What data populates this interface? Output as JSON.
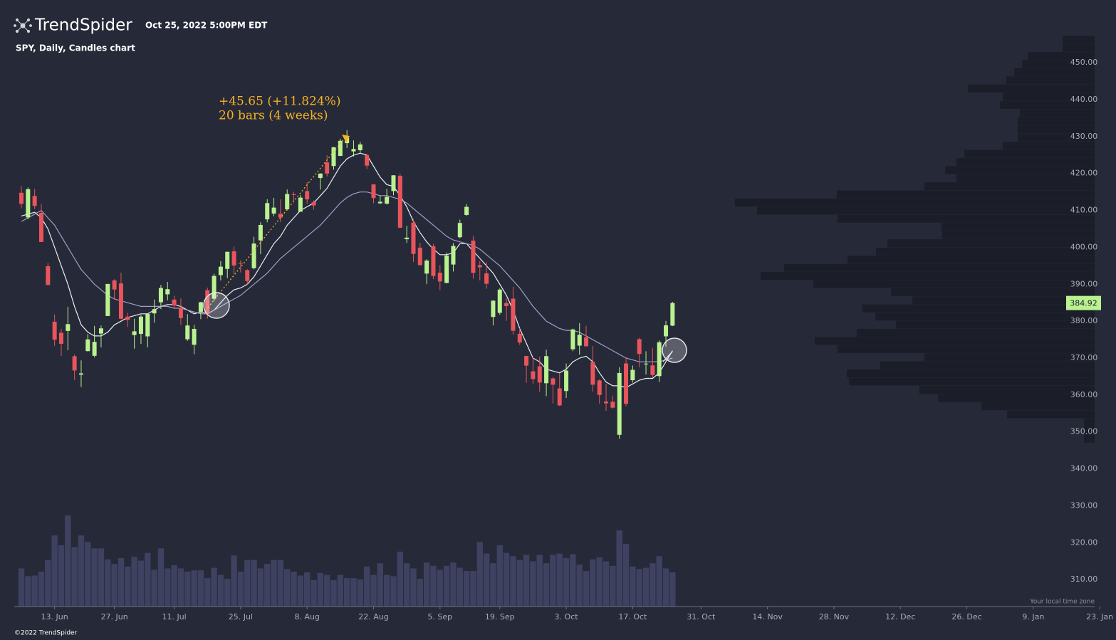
{
  "header": {
    "logo": "TrendSpider",
    "timestamp": "Oct 25, 2022 5:00PM EDT",
    "chart_label": "SPY, Daily, Candles chart"
  },
  "chart_data": {
    "type": "candlestick",
    "dates": [
      "6. Jun",
      "7. Jun",
      "8. Jun",
      "9. Jun",
      "10. Jun",
      "13. Jun",
      "14. Jun",
      "15. Jun",
      "16. Jun",
      "17. Jun",
      "21. Jun",
      "22. Jun",
      "23. Jun",
      "24. Jun",
      "27. Jun",
      "28. Jun",
      "29. Jun",
      "30. Jun",
      "1. Jul",
      "5. Jul",
      "6. Jul",
      "7. Jul",
      "8. Jul",
      "11. Jul",
      "12. Jul",
      "13. Jul",
      "14. Jul",
      "15. Jul",
      "18. Jul",
      "19. Jul",
      "20. Jul",
      "21. Jul",
      "22. Jul",
      "25. Jul",
      "26. Jul",
      "27. Jul",
      "28. Jul",
      "29. Jul",
      "1. Aug",
      "2. Aug",
      "3. Aug",
      "4. Aug",
      "5. Aug",
      "8. Aug",
      "9. Aug",
      "10. Aug",
      "11. Aug",
      "12. Aug",
      "15. Aug",
      "16. Aug",
      "17. Aug",
      "18. Aug",
      "19. Aug",
      "22. Aug",
      "23. Aug",
      "24. Aug",
      "25. Aug",
      "26. Aug",
      "29. Aug",
      "30. Aug",
      "31. Aug",
      "1. Sep",
      "2. Sep",
      "6. Sep",
      "7. Sep",
      "8. Sep",
      "9. Sep",
      "12. Sep",
      "13. Sep",
      "14. Sep",
      "15. Sep",
      "16. Sep",
      "19. Sep",
      "20. Sep",
      "21. Sep",
      "22. Sep",
      "23. Sep",
      "26. Sep",
      "27. Sep",
      "28. Sep",
      "29. Sep",
      "30. Sep",
      "3. Oct",
      "4. Oct",
      "5. Oct",
      "6. Oct",
      "7. Oct",
      "10. Oct",
      "11. Oct",
      "12. Oct",
      "13. Oct",
      "14. Oct",
      "17. Oct",
      "18. Oct",
      "19. Oct",
      "20. Oct",
      "21. Oct",
      "24. Oct",
      "25. Oct"
    ],
    "open": [
      414.78,
      408.1,
      413.93,
      409.34,
      394.88,
      379.85,
      376.85,
      377.36,
      370.51,
      365.51,
      371.89,
      370.62,
      376.64,
      381.4,
      391.05,
      390.23,
      381.23,
      376.24,
      376.56,
      375.88,
      382.11,
      385.12,
      387.27,
      385.85,
      383.65,
      375.1,
      373.61,
      382.55,
      388.38,
      386.08,
      392.47,
      394.16,
      398.92,
      395.75,
      393.84,
      394.36,
      401.89,
      407.58,
      409.15,
      409.12,
      410.3,
      414.37,
      409.66,
      415.25,
      412.22,
      418.78,
      422.99,
      422.03,
      424.77,
      428.22,
      425.99,
      426.3,
      424.98,
      417.05,
      411.93,
      411.84,
      415.24,
      419.39,
      402.2,
      406.69,
      399.92,
      392.89,
      400.28,
      393.13,
      390.37,
      395.34,
      402.74,
      408.78,
      401.83,
      395.16,
      392.96,
      381.15,
      382.26,
      384.9,
      386.11,
      376.58,
      370.58,
      366.41,
      367.76,
      363.19,
      364.49,
      361.8,
      361.08,
      372.4,
      373.38,
      375.62,
      368.97,
      363.96,
      358.24,
      358.17,
      349.21,
      368.55,
      364.01,
      375.13,
      368.49,
      368.03,
      365.12,
      375.89,
      378.79
    ],
    "high": [
      416.61,
      416.22,
      415.82,
      411.74,
      395.78,
      381.81,
      377.94,
      383.9,
      370.94,
      369.38,
      376.53,
      378.72,
      378.83,
      390.09,
      391.36,
      393.16,
      382.27,
      380.66,
      381.7,
      381.98,
      385.87,
      389.83,
      390.64,
      386.87,
      386.16,
      381.92,
      379.05,
      385.25,
      389.09,
      392.87,
      396.26,
      398.84,
      400.18,
      396.47,
      394.06,
      402.88,
      406.8,
      413.03,
      413.41,
      413,
      415.68,
      415.09,
      414.15,
      417.62,
      412.75,
      420.07,
      424.95,
      427.21,
      429.42,
      431.73,
      428.96,
      428.61,
      425.26,
      417.1,
      414.03,
      415.86,
      419.56,
      419.96,
      405.84,
      407.66,
      401.24,
      396.78,
      400.93,
      395.22,
      398.59,
      401.15,
      407.51,
      411.73,
      403.1,
      396.26,
      395.96,
      385.62,
      388.85,
      386.12,
      389.31,
      378.07,
      370.62,
      370.21,
      370.4,
      372.29,
      364.85,
      365.91,
      368.55,
      377.99,
      379.46,
      378.72,
      373.29,
      364.21,
      363.03,
      359.82,
      367.51,
      370.26,
      367.98,
      375.45,
      371.85,
      372.67,
      374.8,
      380.06,
      385.25
    ],
    "low": [
      410.55,
      407.61,
      410.38,
      401.44,
      389.75,
      373.3,
      370.59,
      372.12,
      364.08,
      362.17,
      371.81,
      370.18,
      372.89,
      381.37,
      385.85,
      380.53,
      378.42,
      372.56,
      373.8,
      372.9,
      379.6,
      383.27,
      385.66,
      383.5,
      378.99,
      374.66,
      371.04,
      380.54,
      380.66,
      385.39,
      391.03,
      391.63,
      392.75,
      393.21,
      389.95,
      394.05,
      398.15,
      406.77,
      408.4,
      406.82,
      410,
      412.44,
      409.6,
      411.83,
      410.22,
      415.61,
      419.21,
      421.03,
      424.7,
      426.88,
      424.61,
      425.41,
      421.22,
      411.95,
      411.68,
      411.58,
      414.09,
      405.25,
      401.2,
      396.04,
      395.04,
      390.04,
      391.4,
      388.42,
      390.2,
      393.45,
      402.46,
      408.46,
      391.52,
      391.08,
      388.78,
      378.86,
      381.8,
      380.07,
      376.38,
      373.61,
      363.29,
      363.03,
      360.87,
      359.7,
      357.68,
      357.04,
      359.21,
      371.86,
      370.95,
      373.17,
      360.94,
      357.67,
      355.71,
      356.3,
      348.11,
      356.96,
      363.37,
      367.52,
      365.55,
      364.61,
      363.54,
      373.11,
      378.67
    ],
    "close": [
      411.79,
      415.74,
      411.22,
      401.44,
      389.8,
      375,
      373.87,
      379.2,
      366.65,
      365.86,
      375.07,
      374.39,
      378.06,
      390.08,
      388.59,
      380.65,
      380.34,
      377.25,
      381.24,
      381.96,
      383.25,
      388.99,
      388.67,
      384.23,
      380.83,
      378.83,
      377.91,
      385.13,
      381.95,
      392.27,
      394.77,
      398.79,
      395.09,
      395.57,
      390.89,
      401.04,
      406.07,
      411.99,
      410.77,
      408.06,
      414.45,
      414.17,
      413.47,
      412.99,
      411.35,
      419.99,
      419.99,
      427.1,
      428.86,
      429.7,
      426.65,
      427.89,
      422.14,
      413.35,
      412.35,
      413.67,
      419.51,
      405.31,
      402.63,
      398.21,
      395.18,
      396.42,
      392.24,
      390.76,
      397.78,
      400.38,
      406.6,
      410.97,
      393.1,
      394.6,
      390.12,
      385.56,
      388.55,
      384.09,
      377.39,
      374.22,
      367.95,
      364.31,
      363.38,
      370.53,
      362.79,
      357.18,
      366.61,
      377.76,
      376.35,
      373.2,
      362.79,
      360.02,
      357.74,
      356.56,
      365.97,
      357.63,
      366.82,
      371.13,
      368.5,
      365.41,
      374.29,
      378.87,
      384.92
    ],
    "up_color": "#b9f28f",
    "down_color": "#e8555b",
    "volume": {
      "color": "#3e4160",
      "values": [
        59,
        47,
        48,
        54,
        72,
        110,
        95,
        141,
        92,
        110,
        100,
        90,
        90,
        73,
        66,
        75,
        62,
        77,
        71,
        83,
        57,
        90,
        59,
        64,
        59,
        54,
        56,
        56,
        44,
        60,
        49,
        43,
        79,
        54,
        72,
        72,
        59,
        66,
        72,
        72,
        58,
        54,
        48,
        53,
        41,
        52,
        49,
        41,
        49,
        44,
        44,
        42,
        62,
        49,
        67,
        49,
        47,
        85,
        67,
        59,
        43,
        68,
        63,
        57,
        63,
        68,
        60,
        55,
        55,
        100,
        82,
        67,
        95,
        83,
        78,
        72,
        80,
        70,
        80,
        67,
        80,
        82,
        75,
        81,
        65,
        55,
        73,
        76,
        70,
        63,
        118,
        97,
        62,
        58,
        60,
        67,
        78,
        59,
        53
      ]
    },
    "moving_averages": [
      {
        "color": "#eceef4",
        "values": [
          408.5,
          409,
          409.5,
          408,
          405,
          400,
          395,
          390,
          384,
          379,
          377,
          376,
          376,
          377,
          379,
          380,
          381,
          381.5,
          382,
          382,
          383,
          384,
          384.5,
          384.5,
          384,
          383,
          382,
          382.5,
          382,
          383,
          385,
          387,
          388.5,
          389,
          390,
          392,
          395,
          398,
          401,
          403,
          406,
          408,
          410,
          411,
          412,
          414,
          416,
          419,
          422,
          424,
          425,
          425.5,
          425,
          422,
          419,
          417,
          416.5,
          414,
          411,
          407,
          404,
          401.5,
          399.5,
          398,
          398,
          398.5,
          401,
          401,
          399,
          397,
          395,
          393,
          390,
          387,
          383,
          378,
          374,
          370,
          369,
          367,
          366.5,
          366,
          367,
          369,
          370,
          370.5,
          369,
          366,
          363.5,
          362.5,
          362.5,
          362,
          363,
          364,
          364.5,
          364.5,
          366,
          369,
          372
        ]
      },
      {
        "color": "#a29fc8",
        "values": [
          407,
          408,
          409,
          410,
          408,
          406,
          403,
          400,
          397,
          394,
          392,
          390,
          388.5,
          387,
          386,
          385.5,
          385,
          384.5,
          384,
          384,
          384,
          384,
          384,
          383.5,
          383.5,
          383,
          382.5,
          382,
          382,
          383,
          384,
          385,
          386,
          387,
          388.5,
          390,
          391.5,
          393,
          395,
          397,
          398.5,
          400,
          401.5,
          403,
          404.5,
          406,
          408,
          410,
          412,
          413.5,
          414.5,
          415,
          415,
          414.5,
          414,
          414,
          413.5,
          413,
          412,
          410.5,
          409,
          407.5,
          406,
          404.5,
          403,
          402,
          401.5,
          401,
          400.5,
          399.5,
          398,
          396.5,
          395,
          393,
          391,
          389,
          386.5,
          384,
          382,
          380,
          379,
          378,
          377.5,
          377.5,
          377,
          376,
          375,
          374,
          373,
          372,
          371,
          370,
          369.5,
          369,
          369,
          369,
          369,
          369.5,
          370
        ]
      }
    ],
    "volume_profile": {
      "color": "#1b1d28",
      "bins": [
        457.3,
        455.1,
        452.9,
        450.7,
        448.5,
        446.3,
        444.1,
        441.9,
        439.6,
        437.4,
        435.2,
        433.0,
        430.8,
        428.6,
        426.4,
        424.2,
        422.0,
        419.8,
        417.6,
        415.4,
        413.2,
        411.0,
        408.8,
        406.6,
        404.4,
        402.2,
        399.9,
        397.7,
        395.5,
        393.3,
        391.1,
        388.9,
        386.7,
        384.5,
        382.3,
        380.1,
        377.9,
        375.7,
        373.5,
        371.3,
        369.1,
        366.9,
        364.7,
        362.5,
        360.2,
        358.0,
        355.8,
        353.6,
        351.4,
        349.2,
        347.0
      ],
      "values": [
        45,
        45,
        94,
        102,
        113,
        124,
        178,
        129,
        133,
        105,
        108,
        108,
        108,
        129,
        183,
        194,
        210,
        194,
        239,
        362,
        505,
        474,
        361,
        215,
        214,
        291,
        307,
        347,
        436,
        469,
        395,
        286,
        256,
        326,
        308,
        279,
        334,
        393,
        361,
        239,
        301,
        348,
        345,
        246,
        220,
        159,
        123,
        15,
        15,
        15
      ]
    },
    "ylim": [
      302.7,
      467.0
    ],
    "yticks": [
      {
        "value": 310,
        "label": "310.00"
      },
      {
        "value": 320,
        "label": "320.00"
      },
      {
        "value": 330,
        "label": "330.00"
      },
      {
        "value": 340,
        "label": "340.00"
      },
      {
        "value": 350,
        "label": "350.00"
      },
      {
        "value": 360,
        "label": "360.00"
      },
      {
        "value": 370,
        "label": "370.00"
      },
      {
        "value": 380,
        "label": "380.00"
      },
      {
        "value": 390,
        "label": "390.00"
      },
      {
        "value": 400,
        "label": "400.00"
      },
      {
        "value": 410,
        "label": "410.00"
      },
      {
        "value": 420,
        "label": "420.00"
      },
      {
        "value": 430,
        "label": "430.00"
      },
      {
        "value": 440,
        "label": "440.00"
      },
      {
        "value": 450,
        "label": "450.00"
      }
    ],
    "xticks": [
      "13. Jun",
      "27. Jun",
      "11. Jul",
      "25. Jul",
      "8. Aug",
      "22. Aug",
      "5. Sep",
      "19. Sep",
      "3. Oct",
      "17. Oct",
      "31. Oct",
      "14. Nov",
      "28. Nov",
      "12. Dec",
      "26. Dec",
      "9. Jan",
      "23. Jan"
    ],
    "annotation": {
      "change": "+45.65 (+11.824%)",
      "duration": "20 bars (4 weeks)",
      "color": "#f5b324"
    },
    "timezone_note": "Your local time zone"
  },
  "footer": "©2022 TrendSpider"
}
